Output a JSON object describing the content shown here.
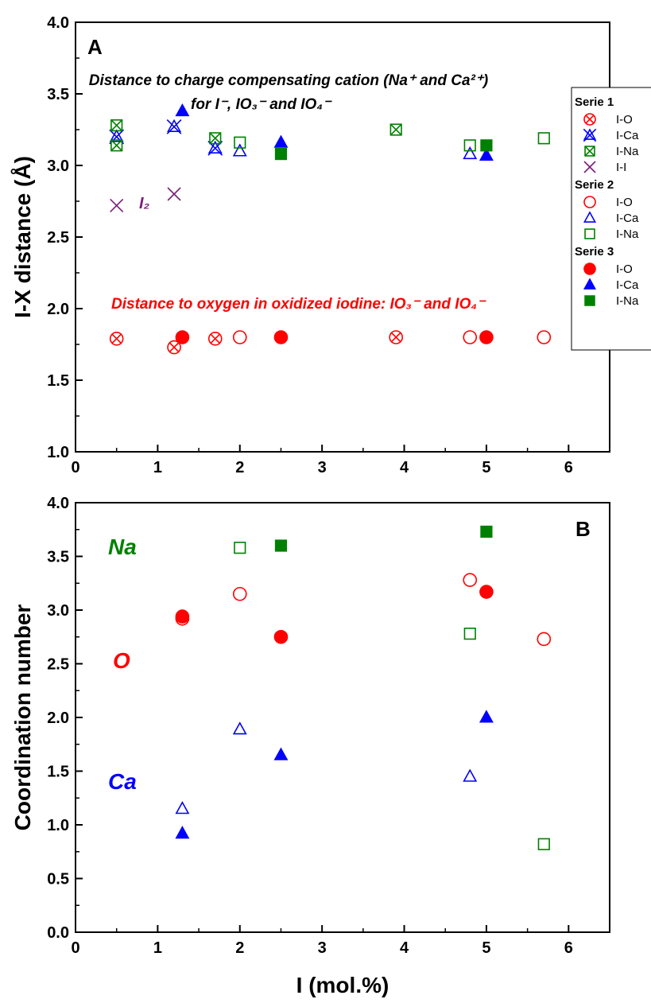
{
  "chart_data": [
    {
      "type": "scatter",
      "panel_label": "A",
      "ylabel": "I-X distance (Å)",
      "xlim": [
        0,
        6.5
      ],
      "ylim": [
        1.0,
        4.0
      ],
      "xticks": [
        "0",
        "1",
        "2",
        "3",
        "4",
        "5",
        "6"
      ],
      "yticks": [
        "1.0",
        "1.5",
        "2.0",
        "2.5",
        "3.0",
        "3.5",
        "4.0"
      ],
      "annotations": [
        {
          "text": "Distance to charge compensating cation (Na⁺ and Ca²⁺)",
          "color": "#000000"
        },
        {
          "text": "for I⁻, IO₃⁻ and IO₄⁻",
          "color": "#000000"
        },
        {
          "text": "I₂",
          "color": "#7a1f7a"
        },
        {
          "text": "Distance to oxygen in oxidized iodine: IO₃⁻ and IO₄⁻",
          "color": "#ff0000"
        }
      ],
      "legend": {
        "groups": [
          {
            "title": "Serie 1",
            "entries": [
              {
                "label": "I-O",
                "marker": "circle-x",
                "color": "#ff0000"
              },
              {
                "label": "I-Ca",
                "marker": "triangle-x",
                "color": "#0000ff"
              },
              {
                "label": "I-Na",
                "marker": "square-x",
                "color": "#008000"
              },
              {
                "label": "I-I",
                "marker": "x",
                "color": "#7a1f7a"
              }
            ]
          },
          {
            "title": "Serie 2",
            "entries": [
              {
                "label": "I-O",
                "marker": "circle-open",
                "color": "#ff0000"
              },
              {
                "label": "I-Ca",
                "marker": "triangle-open",
                "color": "#0000ff"
              },
              {
                "label": "I-Na",
                "marker": "square-open",
                "color": "#008000"
              }
            ]
          },
          {
            "title": "Serie 3",
            "entries": [
              {
                "label": "I-O",
                "marker": "circle-filled",
                "color": "#ff0000"
              },
              {
                "label": "I-Ca",
                "marker": "triangle-filled",
                "color": "#0000ff"
              },
              {
                "label": "I-Na",
                "marker": "square-filled",
                "color": "#008000"
              }
            ]
          }
        ]
      },
      "series": [
        {
          "group": "Serie 1",
          "name": "I-O",
          "marker": "circle-x",
          "color": "#ff0000",
          "points": [
            [
              0.5,
              1.79
            ],
            [
              1.2,
              1.73
            ],
            [
              1.7,
              1.79
            ],
            [
              3.9,
              1.8
            ]
          ]
        },
        {
          "group": "Serie 1",
          "name": "I-Ca",
          "marker": "triangle-x",
          "color": "#0000ff",
          "points": [
            [
              0.5,
              3.2
            ],
            [
              1.2,
              3.27
            ],
            [
              1.7,
              3.12
            ]
          ]
        },
        {
          "group": "Serie 1",
          "name": "I-Na",
          "marker": "square-x",
          "color": "#008000",
          "points": [
            [
              0.5,
              3.28
            ],
            [
              0.5,
              3.14
            ],
            [
              1.7,
              3.19
            ],
            [
              3.9,
              3.25
            ]
          ]
        },
        {
          "group": "Serie 1",
          "name": "I-I",
          "marker": "x",
          "color": "#7a1f7a",
          "points": [
            [
              0.5,
              2.72
            ],
            [
              1.2,
              2.8
            ]
          ]
        },
        {
          "group": "Serie 2",
          "name": "I-O",
          "marker": "circle-open",
          "color": "#ff0000",
          "points": [
            [
              2.0,
              1.8
            ],
            [
              4.8,
              1.8
            ],
            [
              5.7,
              1.8
            ]
          ]
        },
        {
          "group": "Serie 2",
          "name": "I-Ca",
          "marker": "triangle-open",
          "color": "#0000ff",
          "points": [
            [
              2.0,
              3.1
            ],
            [
              4.8,
              3.08
            ]
          ]
        },
        {
          "group": "Serie 2",
          "name": "I-Na",
          "marker": "square-open",
          "color": "#008000",
          "points": [
            [
              2.0,
              3.16
            ],
            [
              4.8,
              3.14
            ],
            [
              5.7,
              3.19
            ]
          ]
        },
        {
          "group": "Serie 3",
          "name": "I-O",
          "marker": "circle-filled",
          "color": "#ff0000",
          "points": [
            [
              1.3,
              1.8
            ],
            [
              2.5,
              1.8
            ],
            [
              5.0,
              1.8
            ]
          ]
        },
        {
          "group": "Serie 3",
          "name": "I-Ca",
          "marker": "triangle-filled",
          "color": "#0000ff",
          "points": [
            [
              1.3,
              3.38
            ],
            [
              2.5,
              3.16
            ],
            [
              5.0,
              3.07
            ]
          ]
        },
        {
          "group": "Serie 3",
          "name": "I-Na",
          "marker": "square-filled",
          "color": "#008000",
          "points": [
            [
              2.5,
              3.08
            ],
            [
              5.0,
              3.14
            ]
          ]
        }
      ]
    },
    {
      "type": "scatter",
      "panel_label": "B",
      "xlabel": "I (mol.%)",
      "ylabel": "Coordination number",
      "xlim": [
        0,
        6.5
      ],
      "ylim": [
        0.0,
        4.0
      ],
      "xticks": [
        "0",
        "1",
        "2",
        "3",
        "4",
        "5",
        "6"
      ],
      "yticks": [
        "0.0",
        "0.5",
        "1.0",
        "1.5",
        "2.0",
        "2.5",
        "3.0",
        "3.5",
        "4.0"
      ],
      "annotations": [
        {
          "text": "Na",
          "color": "#008000"
        },
        {
          "text": "O",
          "color": "#ff0000"
        },
        {
          "text": "Ca",
          "color": "#0000ff"
        }
      ],
      "series": [
        {
          "group": "Serie 2",
          "name": "I-O",
          "marker": "circle-open",
          "color": "#ff0000",
          "points": [
            [
              1.3,
              2.92
            ],
            [
              2.0,
              3.15
            ],
            [
              4.8,
              3.28
            ],
            [
              5.7,
              2.73
            ]
          ]
        },
        {
          "group": "Serie 2",
          "name": "I-Ca",
          "marker": "triangle-open",
          "color": "#0000ff",
          "points": [
            [
              1.3,
              1.15
            ],
            [
              2.0,
              1.89
            ],
            [
              4.8,
              1.45
            ]
          ]
        },
        {
          "group": "Serie 2",
          "name": "I-Na",
          "marker": "square-open",
          "color": "#008000",
          "points": [
            [
              2.0,
              3.58
            ],
            [
              4.8,
              2.78
            ],
            [
              5.7,
              0.82
            ]
          ]
        },
        {
          "group": "Serie 3",
          "name": "I-O",
          "marker": "circle-filled",
          "color": "#ff0000",
          "points": [
            [
              1.3,
              2.94
            ],
            [
              2.5,
              2.75
            ],
            [
              5.0,
              3.17
            ]
          ]
        },
        {
          "group": "Serie 3",
          "name": "I-Ca",
          "marker": "triangle-filled",
          "color": "#0000ff",
          "points": [
            [
              1.3,
              0.92
            ],
            [
              2.5,
              1.65
            ],
            [
              5.0,
              2.0
            ]
          ]
        },
        {
          "group": "Serie 3",
          "name": "I-Na",
          "marker": "square-filled",
          "color": "#008000",
          "points": [
            [
              2.5,
              3.6
            ],
            [
              5.0,
              3.73
            ]
          ]
        }
      ]
    }
  ]
}
